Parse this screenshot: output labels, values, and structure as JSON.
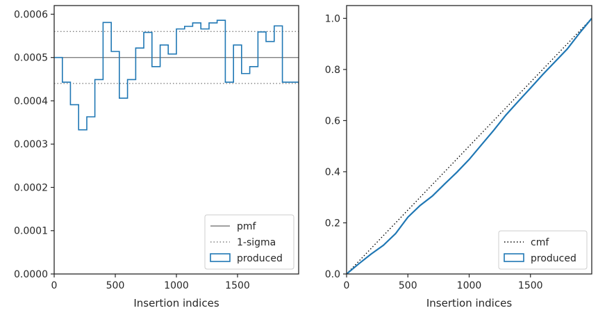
{
  "chart_data": [
    {
      "type": "step-histogram",
      "xlabel": "Insertion indices",
      "ylabel": "",
      "xlim": [
        0,
        2000
      ],
      "ylim": [
        0,
        0.00062
      ],
      "xticks": [
        0,
        500,
        1000,
        1500
      ],
      "xtick_labels": [
        "0",
        "500",
        "1000",
        "1500"
      ],
      "yticks": [
        0,
        0.0001,
        0.0002,
        0.0003,
        0.0004,
        0.0005,
        0.0006
      ],
      "ytick_labels": [
        "0.0000",
        "0.0001",
        "0.0002",
        "0.0003",
        "0.0004",
        "0.0005",
        "0.0006"
      ],
      "bin_edges": [
        0,
        67,
        133,
        200,
        267,
        333,
        400,
        467,
        533,
        600,
        667,
        733,
        800,
        867,
        933,
        1000,
        1067,
        1133,
        1200,
        1267,
        1333,
        1400,
        1467,
        1533,
        1600,
        1667,
        1733,
        1800,
        1867,
        1933,
        2000
      ],
      "series": [
        {
          "name": "produced",
          "color": "#1f77b4",
          "values": [
            0.0005,
            0.000443,
            0.000391,
            0.000333,
            0.000363,
            0.000449,
            0.000581,
            0.000514,
            0.000406,
            0.000449,
            0.000522,
            0.000558,
            0.000479,
            0.000529,
            0.000508,
            0.000566,
            0.000572,
            0.00058,
            0.000566,
            0.00058,
            0.000586,
            0.000443,
            0.000529,
            0.000463,
            0.000479,
            0.000559,
            0.000537,
            0.000573,
            0.000443,
            0.000443
          ]
        }
      ],
      "hlines": [
        {
          "name": "pmf",
          "y": 0.0005,
          "style": "solid",
          "color": "#808080"
        },
        {
          "name": "1-sigma",
          "y": 0.00056,
          "style": "dotted",
          "color": "#808080"
        },
        {
          "name": "1-sigma",
          "y": 0.00044,
          "style": "dotted",
          "color": "#808080"
        }
      ],
      "legend": {
        "position": "lower right",
        "entries": [
          {
            "label": "pmf",
            "kind": "line-solid"
          },
          {
            "label": "1-sigma",
            "kind": "line-dotted"
          },
          {
            "label": "produced",
            "kind": "patch"
          }
        ]
      }
    },
    {
      "type": "line",
      "xlabel": "Insertion indices",
      "ylabel": "",
      "xlim": [
        0,
        2000
      ],
      "ylim": [
        0,
        1.05
      ],
      "xticks": [
        0,
        500,
        1000,
        1500
      ],
      "xtick_labels": [
        "0",
        "500",
        "1000",
        "1500"
      ],
      "yticks": [
        0,
        0.2,
        0.4,
        0.6,
        0.8,
        1.0
      ],
      "ytick_labels": [
        "0.0",
        "0.2",
        "0.4",
        "0.6",
        "0.8",
        "1.0"
      ],
      "series": [
        {
          "name": "cmf",
          "style": "dotted",
          "color": "#000000",
          "x": [
            0,
            2000
          ],
          "y": [
            0,
            1.0
          ]
        },
        {
          "name": "produced",
          "style": "solid",
          "color": "#1f77b4",
          "x": [
            0,
            100,
            200,
            300,
            400,
            500,
            600,
            700,
            800,
            900,
            1000,
            1100,
            1200,
            1300,
            1400,
            1500,
            1600,
            1700,
            1800,
            1900,
            2000
          ],
          "y": [
            0,
            0.04,
            0.078,
            0.112,
            0.158,
            0.222,
            0.268,
            0.305,
            0.352,
            0.398,
            0.448,
            0.505,
            0.562,
            0.622,
            0.675,
            0.727,
            0.78,
            0.83,
            0.88,
            0.942,
            1.0
          ]
        }
      ],
      "legend": {
        "position": "lower right",
        "entries": [
          {
            "label": "cmf",
            "kind": "line-dotted"
          },
          {
            "label": "produced",
            "kind": "patch"
          }
        ]
      }
    }
  ]
}
